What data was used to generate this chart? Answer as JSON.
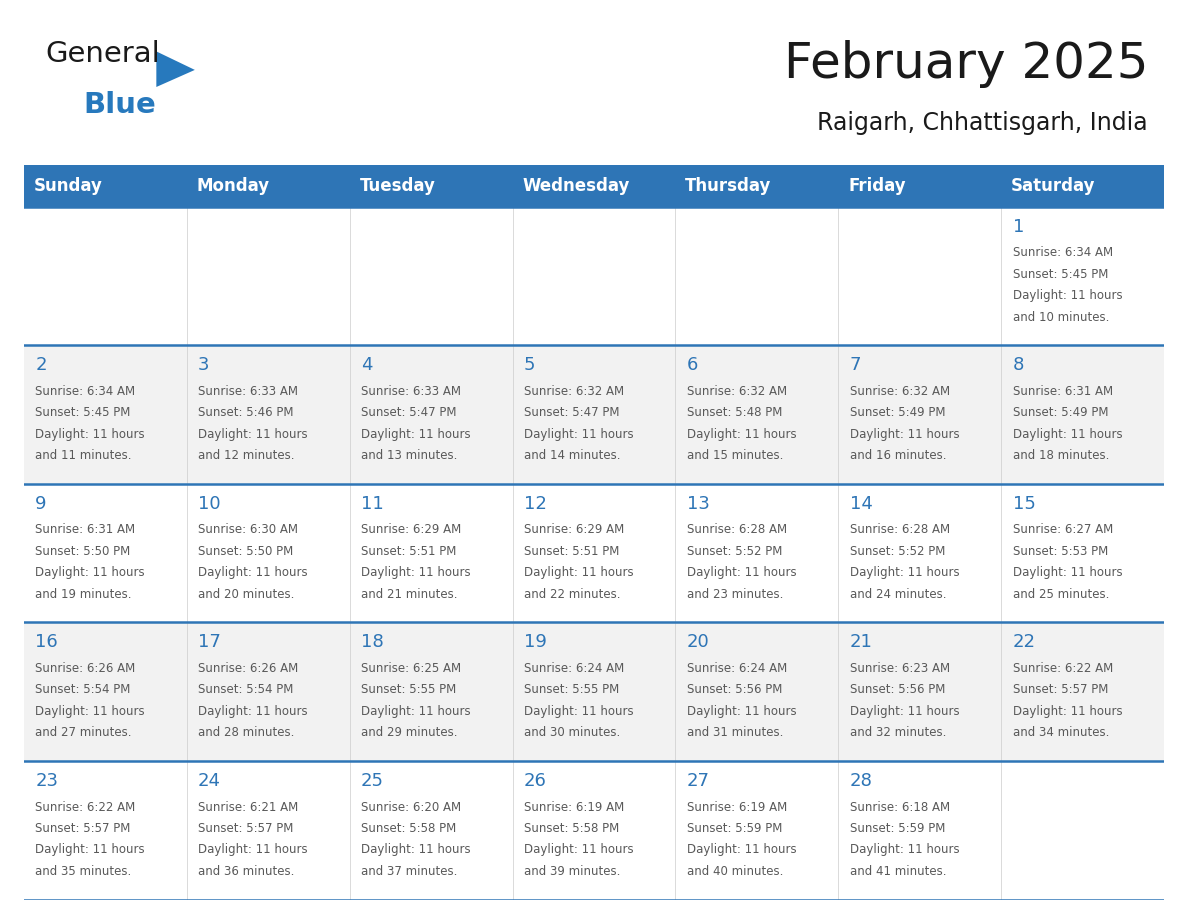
{
  "title": "February 2025",
  "subtitle": "Raigarh, Chhattisgarh, India",
  "days_of_week": [
    "Sunday",
    "Monday",
    "Tuesday",
    "Wednesday",
    "Thursday",
    "Friday",
    "Saturday"
  ],
  "header_bg": "#2E75B6",
  "header_text": "#FFFFFF",
  "cell_bg_even": "#FFFFFF",
  "cell_bg_odd": "#F2F2F2",
  "border_color": "#2E75B6",
  "day_number_color": "#2E75B6",
  "info_text_color": "#595959",
  "calendar_data": [
    [
      null,
      null,
      null,
      null,
      null,
      null,
      {
        "day": "1",
        "sunrise": "6:34 AM",
        "sunset": "5:45 PM",
        "daylight": "11 hours and 10 minutes."
      }
    ],
    [
      {
        "day": "2",
        "sunrise": "6:34 AM",
        "sunset": "5:45 PM",
        "daylight": "11 hours and 11 minutes."
      },
      {
        "day": "3",
        "sunrise": "6:33 AM",
        "sunset": "5:46 PM",
        "daylight": "11 hours and 12 minutes."
      },
      {
        "day": "4",
        "sunrise": "6:33 AM",
        "sunset": "5:47 PM",
        "daylight": "11 hours and 13 minutes."
      },
      {
        "day": "5",
        "sunrise": "6:32 AM",
        "sunset": "5:47 PM",
        "daylight": "11 hours and 14 minutes."
      },
      {
        "day": "6",
        "sunrise": "6:32 AM",
        "sunset": "5:48 PM",
        "daylight": "11 hours and 15 minutes."
      },
      {
        "day": "7",
        "sunrise": "6:32 AM",
        "sunset": "5:49 PM",
        "daylight": "11 hours and 16 minutes."
      },
      {
        "day": "8",
        "sunrise": "6:31 AM",
        "sunset": "5:49 PM",
        "daylight": "11 hours and 18 minutes."
      }
    ],
    [
      {
        "day": "9",
        "sunrise": "6:31 AM",
        "sunset": "5:50 PM",
        "daylight": "11 hours and 19 minutes."
      },
      {
        "day": "10",
        "sunrise": "6:30 AM",
        "sunset": "5:50 PM",
        "daylight": "11 hours and 20 minutes."
      },
      {
        "day": "11",
        "sunrise": "6:29 AM",
        "sunset": "5:51 PM",
        "daylight": "11 hours and 21 minutes."
      },
      {
        "day": "12",
        "sunrise": "6:29 AM",
        "sunset": "5:51 PM",
        "daylight": "11 hours and 22 minutes."
      },
      {
        "day": "13",
        "sunrise": "6:28 AM",
        "sunset": "5:52 PM",
        "daylight": "11 hours and 23 minutes."
      },
      {
        "day": "14",
        "sunrise": "6:28 AM",
        "sunset": "5:52 PM",
        "daylight": "11 hours and 24 minutes."
      },
      {
        "day": "15",
        "sunrise": "6:27 AM",
        "sunset": "5:53 PM",
        "daylight": "11 hours and 25 minutes."
      }
    ],
    [
      {
        "day": "16",
        "sunrise": "6:26 AM",
        "sunset": "5:54 PM",
        "daylight": "11 hours and 27 minutes."
      },
      {
        "day": "17",
        "sunrise": "6:26 AM",
        "sunset": "5:54 PM",
        "daylight": "11 hours and 28 minutes."
      },
      {
        "day": "18",
        "sunrise": "6:25 AM",
        "sunset": "5:55 PM",
        "daylight": "11 hours and 29 minutes."
      },
      {
        "day": "19",
        "sunrise": "6:24 AM",
        "sunset": "5:55 PM",
        "daylight": "11 hours and 30 minutes."
      },
      {
        "day": "20",
        "sunrise": "6:24 AM",
        "sunset": "5:56 PM",
        "daylight": "11 hours and 31 minutes."
      },
      {
        "day": "21",
        "sunrise": "6:23 AM",
        "sunset": "5:56 PM",
        "daylight": "11 hours and 32 minutes."
      },
      {
        "day": "22",
        "sunrise": "6:22 AM",
        "sunset": "5:57 PM",
        "daylight": "11 hours and 34 minutes."
      }
    ],
    [
      {
        "day": "23",
        "sunrise": "6:22 AM",
        "sunset": "5:57 PM",
        "daylight": "11 hours and 35 minutes."
      },
      {
        "day": "24",
        "sunrise": "6:21 AM",
        "sunset": "5:57 PM",
        "daylight": "11 hours and 36 minutes."
      },
      {
        "day": "25",
        "sunrise": "6:20 AM",
        "sunset": "5:58 PM",
        "daylight": "11 hours and 37 minutes."
      },
      {
        "day": "26",
        "sunrise": "6:19 AM",
        "sunset": "5:58 PM",
        "daylight": "11 hours and 39 minutes."
      },
      {
        "day": "27",
        "sunrise": "6:19 AM",
        "sunset": "5:59 PM",
        "daylight": "11 hours and 40 minutes."
      },
      {
        "day": "28",
        "sunrise": "6:18 AM",
        "sunset": "5:59 PM",
        "daylight": "11 hours and 41 minutes."
      },
      null
    ]
  ],
  "logo_color_general": "#1a1a1a",
  "logo_color_blue": "#2779BD",
  "logo_triangle_color": "#2779BD",
  "title_fontsize": 36,
  "subtitle_fontsize": 17,
  "header_fontsize": 12,
  "day_num_fontsize": 13,
  "info_fontsize": 8.5
}
